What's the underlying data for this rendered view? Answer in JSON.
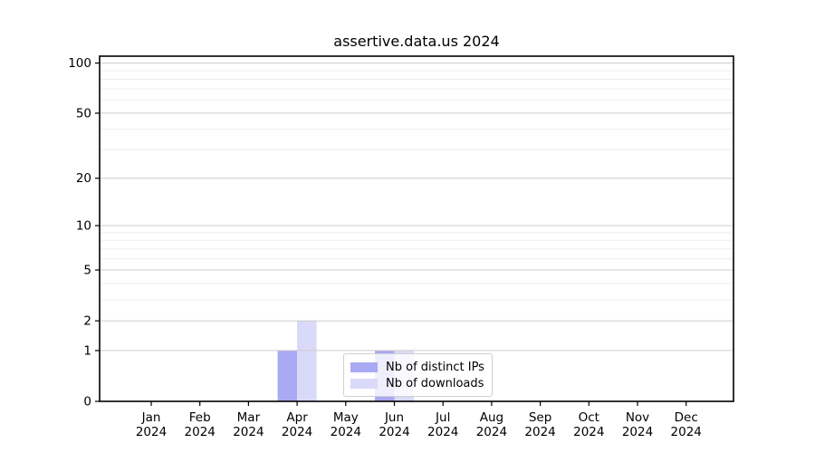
{
  "chart_data": {
    "type": "bar",
    "title": "assertive.data.us 2024",
    "categories": [
      "Jan",
      "Feb",
      "Mar",
      "Apr",
      "May",
      "Jun",
      "Jul",
      "Aug",
      "Sep",
      "Oct",
      "Nov",
      "Dec"
    ],
    "category_year": "2024",
    "series": [
      {
        "name": "Nb of distinct IPs",
        "color": "#a9a9f4",
        "values": [
          0,
          0,
          0,
          1,
          0,
          1,
          0,
          0,
          0,
          0,
          0,
          0
        ]
      },
      {
        "name": "Nb of downloads",
        "color": "#d9d9f9",
        "values": [
          0,
          0,
          0,
          2,
          0,
          1,
          0,
          0,
          0,
          0,
          0,
          0
        ]
      }
    ],
    "yscale": "log1p",
    "ylim": [
      0,
      110
    ],
    "yticks": [
      0,
      1,
      2,
      5,
      10,
      20,
      50,
      100
    ],
    "yticks_minor": [
      3,
      4,
      6,
      7,
      8,
      9,
      30,
      40,
      60,
      70,
      80,
      90
    ],
    "xlabel": "",
    "ylabel": "",
    "grid": "on",
    "legend_position": "lower center",
    "colors": {
      "major_grid": "#cccccc",
      "minor_grid": "#ededed",
      "axis": "#000000",
      "background": "#ffffff"
    }
  }
}
